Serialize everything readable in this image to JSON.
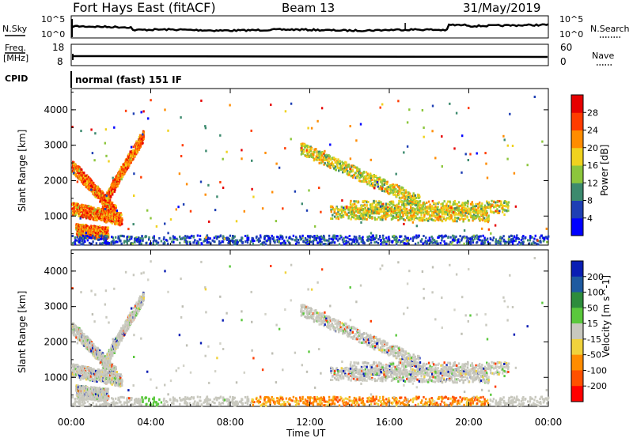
{
  "header": {
    "station": "Fort Hays East (fitACF)",
    "beam": "Beam 13",
    "date": "31/May/2019"
  },
  "status_panels": {
    "nsky_label": "N.Sky",
    "nsearch_label": "N.Search",
    "freq_label_1": "Freq.",
    "freq_label_2": "[MHz]",
    "nave_label": "Nave",
    "cpid_label": "CPID",
    "noise_ticks_left": [
      "10^5",
      "10^0"
    ],
    "noise_ticks_right": [
      "10^5",
      "10^0"
    ],
    "freq_ticks": [
      "18",
      "8"
    ],
    "nave_ticks": [
      "60",
      "0"
    ],
    "cpid_text": "normal (fast) 151 IF"
  },
  "chart_data": [
    {
      "type": "heatmap",
      "name": "power",
      "ylabel": "Slant Range [km]",
      "y_ticks": [
        "1000",
        "2000",
        "3000",
        "4000"
      ],
      "ylim": [
        180,
        4600
      ],
      "xlim": [
        0,
        24
      ],
      "colorbar_label": "Power [dB]",
      "colorbar_ticks": [
        "4",
        "8",
        "12",
        "16",
        "20",
        "24",
        "28"
      ],
      "colorbar_colors": [
        "#0000ff",
        "#1e3fb4",
        "#3c8a6e",
        "#8cc63c",
        "#f0d21e",
        "#ff8c00",
        "#ff3c00",
        "#e60000"
      ],
      "features": [
        {
          "t_start": 0.0,
          "t_end": 2.2,
          "r_start": 2400,
          "r_end": 1100
        },
        {
          "t_start": 1.5,
          "t_end": 3.6,
          "r_start": 1300,
          "r_end": 3300
        },
        {
          "t_start": 0.0,
          "t_end": 2.5,
          "r_start": 1200,
          "r_end": 900
        },
        {
          "t_start": 0.2,
          "t_end": 1.8,
          "r_start": 600,
          "r_end": 500
        },
        {
          "t_start": 11.5,
          "t_end": 17.5,
          "r_start": 2900,
          "r_end": 1400
        },
        {
          "t_start": 13.0,
          "t_end": 21.0,
          "r_start": 1100,
          "r_end": 1000
        },
        {
          "t_start": 14.0,
          "t_end": 22.0,
          "r_start": 1250,
          "r_end": 1250
        }
      ]
    },
    {
      "type": "heatmap",
      "name": "velocity",
      "ylabel": "Slant Range [km]",
      "y_ticks": [
        "1000",
        "2000",
        "3000",
        "4000"
      ],
      "ylim": [
        180,
        4600
      ],
      "xlim": [
        0,
        24
      ],
      "xlabel": "Time UT",
      "x_ticks": [
        "00:00",
        "04:00",
        "08:00",
        "12:00",
        "16:00",
        "20:00",
        "00:00"
      ],
      "colorbar_label": "Velocity [m s^-1]",
      "colorbar_ticks": [
        "200",
        "100",
        "50",
        "15",
        "-15",
        "-50",
        "-100",
        "-200"
      ],
      "colorbar_colors": [
        "#0a1eb4",
        "#1e5aa0",
        "#2d8c3c",
        "#5ac83c",
        "#c8c8be",
        "#f0d23c",
        "#ff8c00",
        "#ff5000",
        "#ff0000"
      ]
    }
  ]
}
